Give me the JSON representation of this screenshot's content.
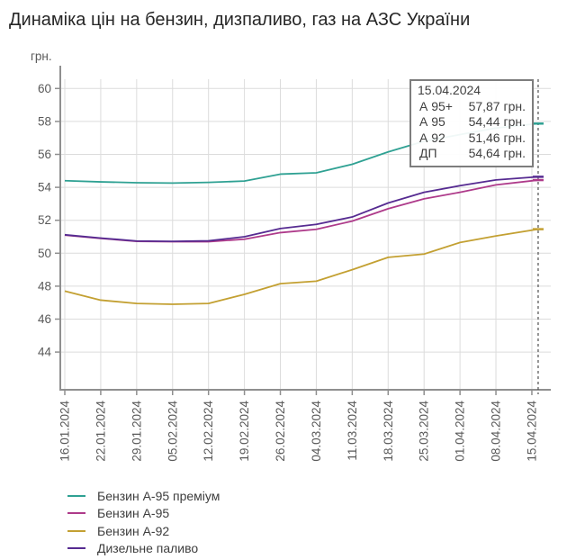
{
  "chart_data": {
    "type": "line",
    "title": "Динаміка цін на бензин, дизпаливо, газ на АЗС України",
    "ylabel": "грн.",
    "xlabel": "",
    "categories": [
      "16.01.2024",
      "22.01.2024",
      "29.01.2024",
      "05.02.2024",
      "12.02.2024",
      "19.02.2024",
      "26.02.2024",
      "04.03.2024",
      "11.03.2024",
      "18.03.2024",
      "25.03.2024",
      "01.04.2024",
      "08.04.2024",
      "15.04.2024"
    ],
    "series": [
      {
        "name": "Бензин А-95 преміум",
        "color": "#2fa193",
        "values": [
          54.4,
          54.33,
          54.28,
          54.26,
          54.3,
          54.38,
          54.8,
          54.88,
          55.4,
          56.15,
          56.8,
          57.2,
          57.6,
          57.87
        ]
      },
      {
        "name": "Бензин А-95",
        "color": "#ae3a8a",
        "values": [
          51.1,
          50.9,
          50.72,
          50.7,
          50.7,
          50.85,
          51.25,
          51.45,
          51.95,
          52.7,
          53.3,
          53.7,
          54.15,
          54.44
        ]
      },
      {
        "name": "Бензин А-92",
        "color": "#c3a032",
        "values": [
          47.7,
          47.15,
          46.95,
          46.9,
          46.95,
          47.5,
          48.15,
          48.3,
          49.0,
          49.75,
          49.95,
          50.65,
          51.05,
          51.46
        ]
      },
      {
        "name": "Дизельне паливо",
        "color": "#562b91",
        "values": [
          51.12,
          50.92,
          50.74,
          50.72,
          50.75,
          51.0,
          51.5,
          51.75,
          52.2,
          53.05,
          53.7,
          54.1,
          54.45,
          54.64
        ]
      }
    ],
    "y_ticks": [
      44,
      46,
      48,
      50,
      52,
      54,
      56,
      58,
      60
    ],
    "ylim": [
      41.7,
      60.6
    ],
    "grid": true,
    "legend_position": "bottom-left",
    "cursor_date": "15.04.2024"
  },
  "tooltip": {
    "date": "15.04.2024",
    "rows": [
      {
        "label": "А 95+",
        "value": "57,87 грн."
      },
      {
        "label": "А 95",
        "value": "54,44 грн."
      },
      {
        "label": "А 92",
        "value": "51,46 грн."
      },
      {
        "label": "ДП",
        "value": "54,64 грн."
      }
    ]
  }
}
